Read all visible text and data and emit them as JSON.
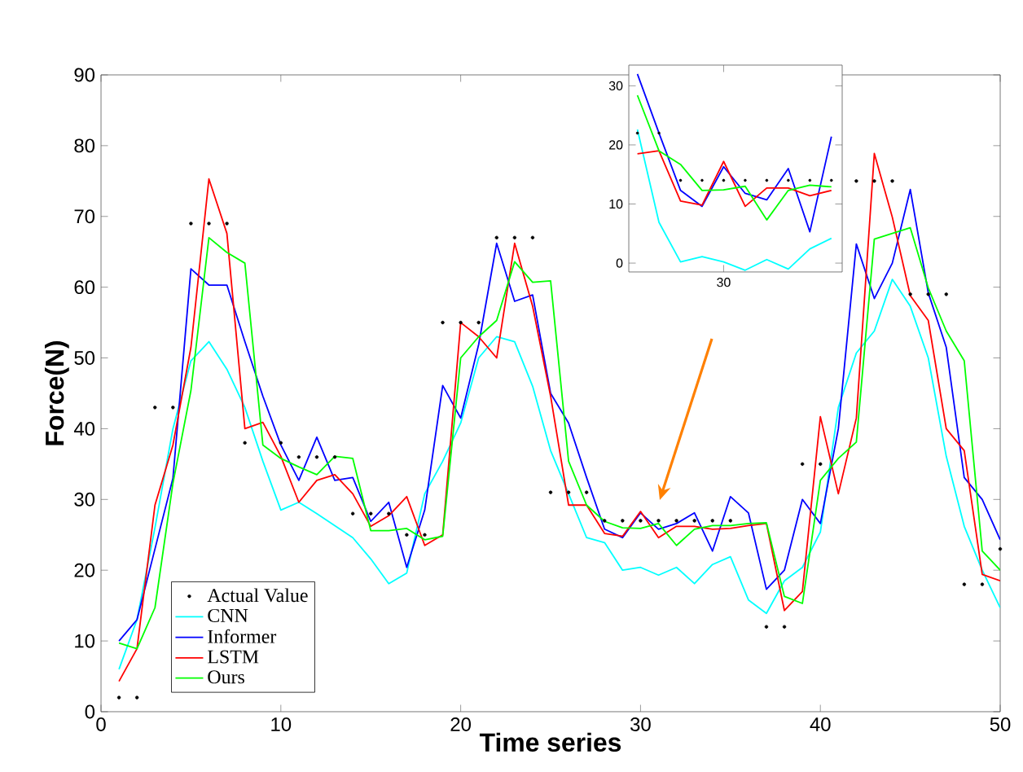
{
  "chart_data": [
    {
      "type": "line",
      "xlabel": "Time series",
      "ylabel": "Force(N)",
      "xlim": [
        0,
        50
      ],
      "ylim": [
        0,
        90
      ],
      "xticks": [
        0,
        10,
        20,
        30,
        40,
        50
      ],
      "yticks": [
        0,
        10,
        20,
        30,
        40,
        50,
        60,
        70,
        80,
        90
      ],
      "legend": "bottom left",
      "grid": false,
      "x": [
        1,
        2,
        3,
        4,
        5,
        6,
        7,
        8,
        9,
        10,
        11,
        12,
        13,
        14,
        15,
        16,
        17,
        18,
        19,
        20,
        21,
        22,
        23,
        24,
        25,
        26,
        27,
        28,
        29,
        30,
        31,
        32,
        33,
        34,
        35,
        36,
        37,
        38,
        39,
        40,
        41,
        42,
        43,
        44,
        45,
        46,
        47,
        48,
        49,
        50
      ],
      "series": [
        {
          "name": "Actual Value",
          "type": "scatter",
          "color": "#000000",
          "values": [
            2,
            2,
            43,
            43,
            69,
            69,
            69,
            38,
            null,
            38,
            36,
            36,
            36,
            28,
            28,
            28,
            25,
            25,
            55,
            55,
            55,
            67,
            67,
            67,
            31,
            31,
            31,
            27,
            27,
            27,
            27,
            27,
            27,
            27,
            27,
            null,
            12,
            12,
            35,
            35,
            null,
            75,
            75,
            75,
            59,
            59,
            59,
            18,
            18,
            23
          ]
        },
        {
          "name": "CNN",
          "color": "#00ffff",
          "values": [
            6,
            13,
            26,
            40,
            49.6,
            52.3,
            48.4,
            43,
            35.4,
            28.5,
            29.6,
            28,
            26.3,
            24.6,
            21.6,
            18.1,
            19.6,
            30.8,
            35.4,
            40.8,
            50,
            53,
            52.3,
            46,
            36.9,
            30.8,
            24.6,
            23.9,
            20,
            20.4,
            19.3,
            20.4,
            18.1,
            20.8,
            21.9,
            15.8,
            13.9,
            18.5,
            20.4,
            25.4,
            43,
            50.7,
            53.8,
            61.1,
            57.3,
            50,
            36.1,
            26.2,
            20,
            14.7
          ]
        },
        {
          "name": "Informer",
          "color": "#0000ff",
          "values": [
            10,
            13,
            23,
            33,
            62.6,
            60.3,
            60.3,
            52.3,
            44.6,
            37.7,
            32.7,
            38.8,
            32.7,
            33.1,
            26.9,
            29.6,
            20.4,
            28.5,
            46.1,
            41.5,
            51.9,
            66.2,
            58,
            58.9,
            45,
            40.8,
            33.1,
            25.8,
            24.6,
            28.1,
            25.8,
            26.6,
            28.1,
            22.7,
            30.4,
            28.1,
            17.3,
            20,
            30,
            26.6,
            40,
            66.1,
            58.4,
            63.4,
            73.8,
            59.2,
            51.5,
            33.1,
            30,
            24.3
          ]
        },
        {
          "name": "LSTM",
          "color": "#ff0000",
          "values": [
            4.3,
            8.9,
            29.2,
            37.7,
            51.5,
            75.3,
            67.6,
            40,
            40.9,
            36.1,
            29.6,
            32.7,
            33.5,
            30.8,
            26.2,
            27.7,
            30.4,
            23.5,
            25,
            55,
            53,
            50,
            66.2,
            57.3,
            44.6,
            29.2,
            29.2,
            25.2,
            24.8,
            28.3,
            24.6,
            26.2,
            26.2,
            25.8,
            25.9,
            26.3,
            26.6,
            14.3,
            17,
            41.7,
            30.8,
            41.5,
            78.9,
            69.9,
            58.8,
            55.3,
            40,
            36.9,
            19.4,
            18.5
          ]
        },
        {
          "name": "Ours",
          "color": "#00ff00",
          "values": [
            9.7,
            8.9,
            14.7,
            32.3,
            45.4,
            67,
            64.9,
            63.4,
            37.7,
            35.8,
            34.6,
            33.5,
            36.1,
            35.8,
            25.6,
            25.6,
            25.9,
            24.3,
            24.8,
            50,
            53,
            55.3,
            63.6,
            60.7,
            60.9,
            35.4,
            29.2,
            26.9,
            26,
            25.9,
            26.6,
            23.5,
            25.8,
            26.3,
            26.3,
            26.6,
            26.7,
            16.3,
            15.3,
            32.7,
            35.8,
            38.1,
            66.8,
            67.6,
            68.4,
            59.9,
            53.8,
            49.6,
            22.7,
            20
          ]
        }
      ]
    },
    {
      "type": "line",
      "ylim": [
        -1.5,
        33.5
      ],
      "yticks": [
        0,
        10,
        20,
        30
      ],
      "legend": false,
      "grid": false,
      "categories": [
        null,
        null,
        null,
        null,
        "30",
        null,
        null,
        null,
        null,
        null
      ],
      "series": [
        {
          "type": "scatter",
          "color": "#000000",
          "values": [
            22,
            22,
            14,
            14,
            14,
            14,
            14,
            14,
            14,
            14
          ]
        },
        {
          "color": "#00ffff",
          "values": [
            22.6,
            6.9,
            0.2,
            1.1,
            0.2,
            -1.2,
            0.6,
            -1,
            2.4,
            4.2
          ]
        },
        {
          "color": "#0000ff",
          "values": [
            32,
            22,
            12.3,
            9.6,
            16.3,
            11.8,
            10.7,
            16,
            5.3,
            21.4
          ]
        },
        {
          "color": "#ff0000",
          "values": [
            18.5,
            19,
            10.5,
            9.8,
            17.2,
            9.6,
            12.7,
            12.7,
            11.4,
            12.3
          ]
        },
        {
          "color": "#00ff00",
          "values": [
            28.4,
            19,
            16.7,
            12.3,
            12.4,
            13,
            7.3,
            12.3,
            13.2,
            12.9
          ]
        }
      ]
    }
  ]
}
